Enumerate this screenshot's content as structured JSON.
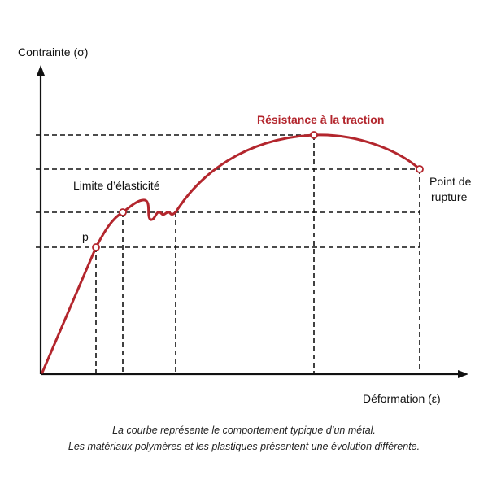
{
  "axes": {
    "y_label": "Contrainte (σ)",
    "x_label": "Déformation (ε)"
  },
  "annotations": {
    "p": "p",
    "elastic_limit": "Limite d’élasticité",
    "tensile_strength": "Résistance à la traction",
    "rupture_line1": "Point de",
    "rupture_line2": "rupture"
  },
  "caption": {
    "line1": "La courbe représente le comportement typique d’un métal.",
    "line2": "Les matériaux polymères et les plastiques présentent une évolution différente."
  },
  "colors": {
    "curve": "#b3262d",
    "axes": "#111111"
  }
}
